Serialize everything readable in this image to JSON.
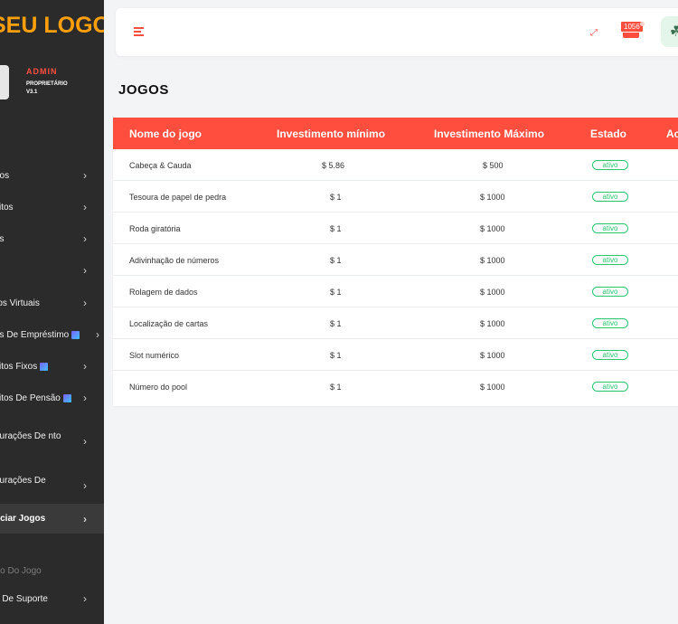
{
  "brand": {
    "logo_text": "SEU LOGO"
  },
  "profile": {
    "role": "ADMIN",
    "title": "PROPRIETÁRIO",
    "version": "V3.1"
  },
  "sidebar": {
    "items": [
      {
        "label": "l",
        "has_chevron": false
      },
      {
        "label": "rios",
        "has_chevron": true
      },
      {
        "label": "sitos",
        "has_chevron": true
      },
      {
        "label": "os",
        "has_chevron": true
      },
      {
        "label": "",
        "has_chevron": true
      },
      {
        "label": "ros Virtuais",
        "has_chevron": true
      },
      {
        "label": "as De Empréstimo",
        "has_chevron": true
      },
      {
        "label": "sitos Fixos",
        "has_chevron": true
      },
      {
        "label": "sitos De Pensão",
        "has_chevron": true
      },
      {
        "label": "gurações De nto",
        "has_chevron": true
      },
      {
        "label": "gurações De",
        "has_chevron": true
      },
      {
        "label": "nciar Jogos",
        "has_chevron": true
      },
      {
        "label": "tro Do Jogo",
        "has_chevron": false
      },
      {
        "label": "e De Suporte",
        "has_chevron": true
      }
    ]
  },
  "topbar": {
    "notification_count": "1056"
  },
  "page": {
    "title": "JOGOS"
  },
  "table": {
    "columns": [
      "Nome do jogo",
      "Investimento mínimo",
      "Investimento Máximo",
      "Estado",
      "Ac"
    ],
    "rows": [
      {
        "name": "Cabeça & Cauda",
        "min": "$ 5.86",
        "max": "$ 500",
        "status": "ativo"
      },
      {
        "name": "Tesoura de papel de pedra",
        "min": "$ 1",
        "max": "$ 1000",
        "status": "ativo"
      },
      {
        "name": "Roda giratória",
        "min": "$ 1",
        "max": "$ 1000",
        "status": "ativo"
      },
      {
        "name": "Adivinhação de números",
        "min": "$ 1",
        "max": "$ 1000",
        "status": "ativo"
      },
      {
        "name": "Rolagem de dados",
        "min": "$ 1",
        "max": "$ 1000",
        "status": "ativo"
      },
      {
        "name": "Localização de cartas",
        "min": "$ 1",
        "max": "$ 1000",
        "status": "ativo"
      },
      {
        "name": "Slot numérico",
        "min": "$ 1",
        "max": "$ 1000",
        "status": "ativo"
      },
      {
        "name": "Número do pool",
        "min": "$ 1",
        "max": "$ 1000",
        "status": "ativo"
      }
    ]
  },
  "colors": {
    "accent": "#ff4d3e",
    "logo": "#ff9f0a",
    "sidebar_bg": "#2b2b2b",
    "active_green": "#28c76f"
  }
}
